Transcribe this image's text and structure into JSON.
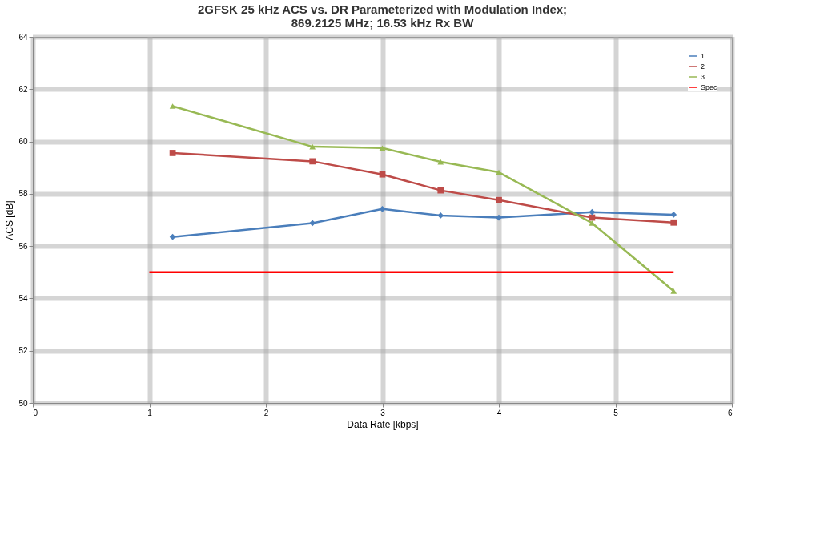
{
  "chart_data": {
    "type": "line",
    "title": [
      "2GFSK 25 kHz ACS vs. DR Parameterized with Modulation Index;",
      "869.2125 MHz; 16.53 kHz Rx BW"
    ],
    "xlabel": "Data Rate [kbps]",
    "ylabel": "ACS [dB]",
    "x": [
      1.2,
      2.4,
      3,
      3.5,
      4,
      4.8,
      5.5
    ],
    "series": [
      {
        "name": "1",
        "color": "#4a7ebb",
        "marker": "diamond",
        "values": [
          56.35,
          56.88,
          57.42,
          57.17,
          57.09,
          57.3,
          57.2
        ]
      },
      {
        "name": "2",
        "color": "#be4b48",
        "marker": "square",
        "values": [
          59.56,
          59.24,
          58.74,
          58.13,
          57.76,
          57.09,
          56.9
        ]
      },
      {
        "name": "3",
        "color": "#98b954",
        "marker": "triangle",
        "values": [
          61.35,
          59.8,
          59.75,
          59.22,
          58.82,
          56.88,
          54.28
        ]
      },
      {
        "name": "Spec",
        "color": "#ff0000",
        "marker": "none",
        "x": [
          1,
          5.5
        ],
        "values": [
          55,
          55
        ]
      }
    ],
    "xlim": [
      0,
      6
    ],
    "xticks": [
      0,
      1,
      2,
      3,
      4,
      5,
      6
    ],
    "ylim": [
      50,
      64
    ],
    "yticks": [
      50,
      52,
      54,
      56,
      58,
      60,
      62,
      64
    ],
    "grid": true,
    "legend": "top right",
    "line_style": "solid"
  }
}
